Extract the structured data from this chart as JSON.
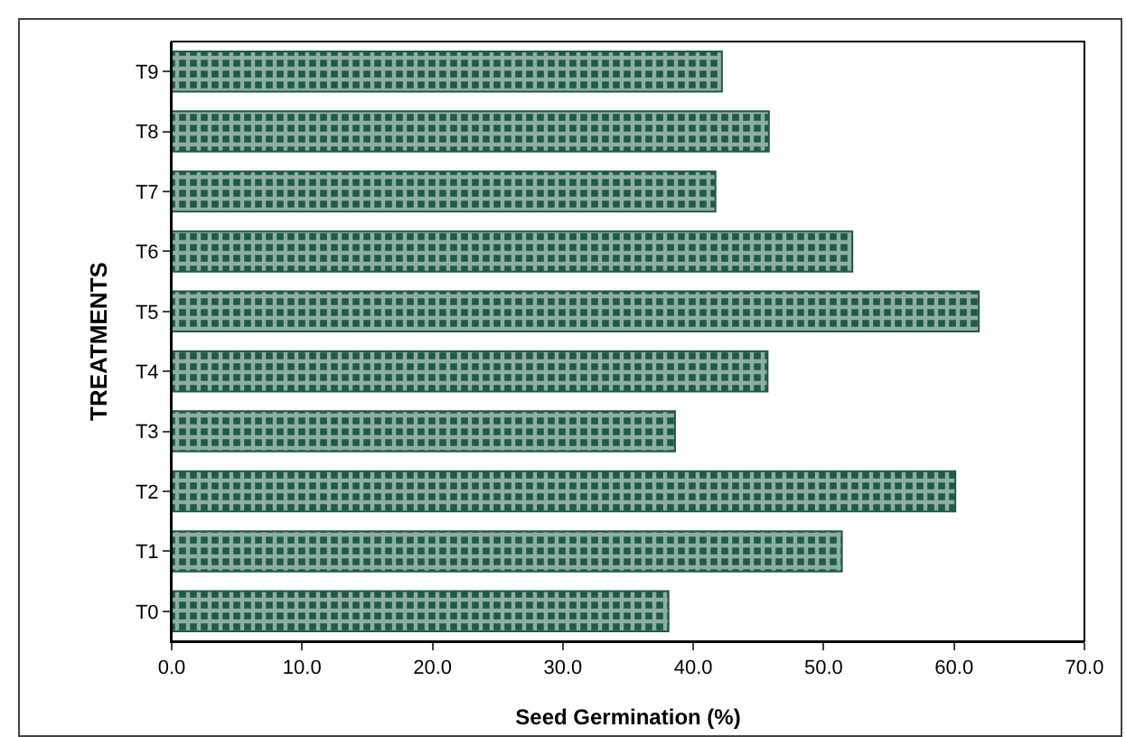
{
  "chart_data": {
    "type": "bar",
    "orientation": "horizontal",
    "xlabel": "Seed Germination (%)",
    "ylabel": "TREATMENTS",
    "categories": [
      "T9",
      "T8",
      "T7",
      "T6",
      "T5",
      "T4",
      "T3",
      "T2",
      "T1",
      "T0"
    ],
    "values": [
      42.2,
      45.8,
      41.7,
      52.2,
      61.9,
      45.7,
      38.6,
      60.1,
      51.4,
      38.1
    ],
    "color": "#1e5b44",
    "xlim": [
      0,
      70
    ],
    "xticks": [
      {
        "value": 0,
        "label": "0.0"
      },
      {
        "value": 10,
        "label": "10.0"
      },
      {
        "value": 20,
        "label": "20.0"
      },
      {
        "value": 30,
        "label": "30.0"
      },
      {
        "value": 40,
        "label": "40.0"
      },
      {
        "value": 50,
        "label": "50.0"
      },
      {
        "value": 60,
        "label": "60.0"
      },
      {
        "value": 70,
        "label": "70.0"
      }
    ],
    "grid": false
  }
}
